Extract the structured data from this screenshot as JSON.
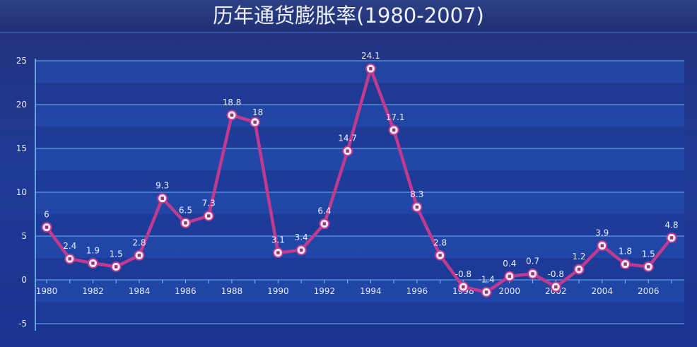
{
  "chart_data": {
    "type": "line",
    "title": "历年通货膨胀率(1980-2007)",
    "xlabel": "",
    "ylabel": "",
    "x": [
      1980,
      1981,
      1982,
      1983,
      1984,
      1985,
      1986,
      1987,
      1988,
      1989,
      1990,
      1991,
      1992,
      1993,
      1994,
      1995,
      1996,
      1997,
      1998,
      1999,
      2000,
      2001,
      2002,
      2003,
      2004,
      2005,
      2006,
      2007
    ],
    "x_tick_labels": [
      "1980",
      "1982",
      "1984",
      "1986",
      "1988",
      "1990",
      "1992",
      "1994",
      "1996",
      "1998",
      "2000",
      "2002",
      "2004",
      "2006"
    ],
    "y_tick_labels": [
      "25",
      "20",
      "15",
      "10",
      "5",
      "0",
      "-5"
    ],
    "ylim": [
      -5,
      25
    ],
    "series": [
      {
        "values": [
          6,
          2.4,
          1.9,
          1.5,
          2.8,
          9.3,
          6.5,
          7.3,
          18.8,
          18,
          3.1,
          3.4,
          6.4,
          14.7,
          24.1,
          17.1,
          8.3,
          2.8,
          -0.8,
          -1.4,
          0.4,
          0.7,
          -0.8,
          1.2,
          3.9,
          1.8,
          1.5,
          4.8
        ],
        "labels": [
          "6",
          "2.4",
          "1.9",
          "1.5",
          "2.8",
          "9.3",
          "6.5",
          "7.3",
          "18.8",
          "18",
          "3.1",
          "3.4",
          "6.4",
          "14.7",
          "24.1",
          "17.1",
          "8.3",
          "2.8",
          "-0.8",
          "-1.4",
          "0.4",
          "0.7",
          "-0.8",
          "1.2",
          "3.9",
          "1.8",
          "1.5",
          "4.8"
        ]
      }
    ],
    "grid": true,
    "legend": "none",
    "colors": {
      "line": "#c23a8f",
      "marker_fill": "#f3e6ef",
      "marker_center": "#8a3a78",
      "background": "#1b2f7a",
      "title_band": "#27397e",
      "plot_band_dark": "#1e3e9c",
      "plot_band_light": "#2452b8",
      "grid": "#7fc4ff"
    }
  }
}
